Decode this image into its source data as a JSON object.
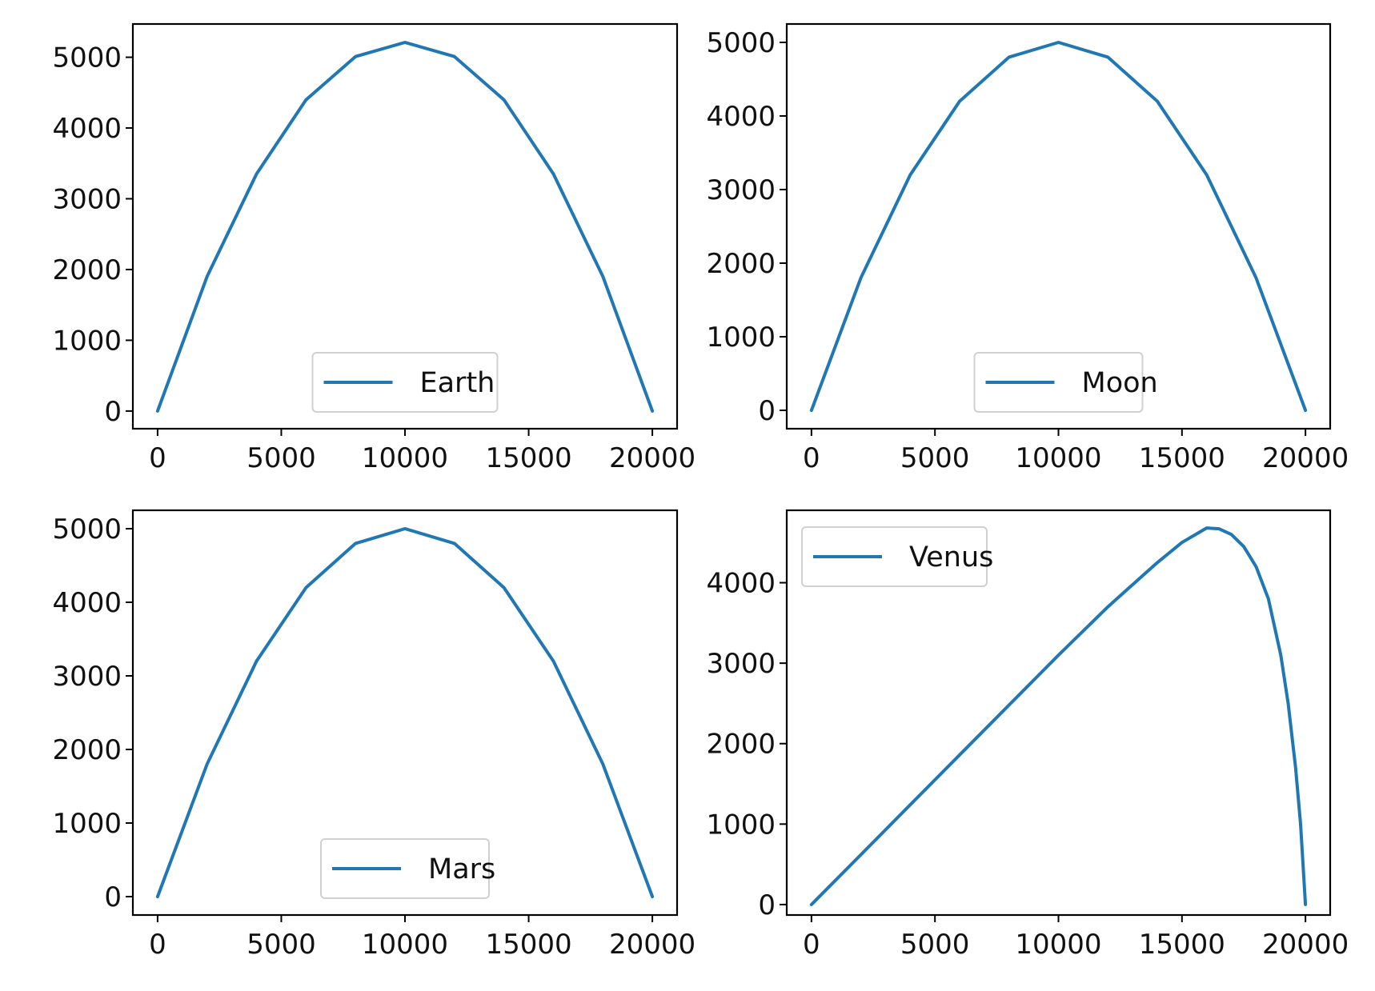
{
  "chart_data": [
    {
      "type": "line",
      "title": "",
      "xlabel": "",
      "ylabel": "",
      "xlim": [
        -1000,
        21000
      ],
      "ylim": [
        -250,
        5470
      ],
      "xticks": [
        0,
        5000,
        10000,
        15000,
        20000
      ],
      "yticks": [
        0,
        1000,
        2000,
        3000,
        4000,
        5000
      ],
      "grid": false,
      "legend_position": "lower center",
      "color": "#1f77b4",
      "series": [
        {
          "name": "Earth",
          "x": [
            0,
            2000,
            4000,
            6000,
            8000,
            10000,
            12000,
            14000,
            16000,
            18000,
            20000
          ],
          "y": [
            0,
            1900,
            3350,
            4400,
            5010,
            5210,
            5010,
            4400,
            3350,
            1900,
            0
          ]
        }
      ]
    },
    {
      "type": "line",
      "title": "",
      "xlabel": "",
      "ylabel": "",
      "xlim": [
        -1000,
        21000
      ],
      "ylim": [
        -250,
        5250
      ],
      "xticks": [
        0,
        5000,
        10000,
        15000,
        20000
      ],
      "yticks": [
        0,
        1000,
        2000,
        3000,
        4000,
        5000
      ],
      "grid": false,
      "legend_position": "lower center",
      "color": "#1f77b4",
      "series": [
        {
          "name": "Moon",
          "x": [
            0,
            2000,
            4000,
            6000,
            8000,
            10000,
            12000,
            14000,
            16000,
            18000,
            20000
          ],
          "y": [
            0,
            1800,
            3200,
            4200,
            4800,
            5000,
            4800,
            4200,
            3200,
            1800,
            0
          ]
        }
      ]
    },
    {
      "type": "line",
      "title": "",
      "xlabel": "",
      "ylabel": "",
      "xlim": [
        -1000,
        21000
      ],
      "ylim": [
        -250,
        5250
      ],
      "xticks": [
        0,
        5000,
        10000,
        15000,
        20000
      ],
      "yticks": [
        0,
        1000,
        2000,
        3000,
        4000,
        5000
      ],
      "grid": false,
      "legend_position": "lower center",
      "color": "#1f77b4",
      "series": [
        {
          "name": "Mars",
          "x": [
            0,
            2000,
            4000,
            6000,
            8000,
            10000,
            12000,
            14000,
            16000,
            18000,
            20000
          ],
          "y": [
            0,
            1800,
            3200,
            4200,
            4800,
            5000,
            4800,
            4200,
            3200,
            1800,
            0
          ]
        }
      ]
    },
    {
      "type": "line",
      "title": "",
      "xlabel": "",
      "ylabel": "",
      "xlim": [
        -1000,
        21000
      ],
      "ylim": [
        -130,
        4900
      ],
      "xticks": [
        0,
        5000,
        10000,
        15000,
        20000
      ],
      "yticks": [
        0,
        1000,
        2000,
        3000,
        4000
      ],
      "grid": false,
      "legend_position": "upper left",
      "color": "#1f77b4",
      "series": [
        {
          "name": "Venus",
          "x": [
            0,
            2000,
            4000,
            6000,
            8000,
            10000,
            12000,
            14000,
            15000,
            16000,
            16500,
            17000,
            17500,
            18000,
            18500,
            19000,
            19300,
            19600,
            19800,
            20000
          ],
          "y": [
            0,
            620,
            1240,
            1860,
            2480,
            3100,
            3700,
            4250,
            4500,
            4680,
            4670,
            4600,
            4450,
            4200,
            3800,
            3100,
            2500,
            1700,
            1000,
            0
          ]
        }
      ]
    }
  ]
}
